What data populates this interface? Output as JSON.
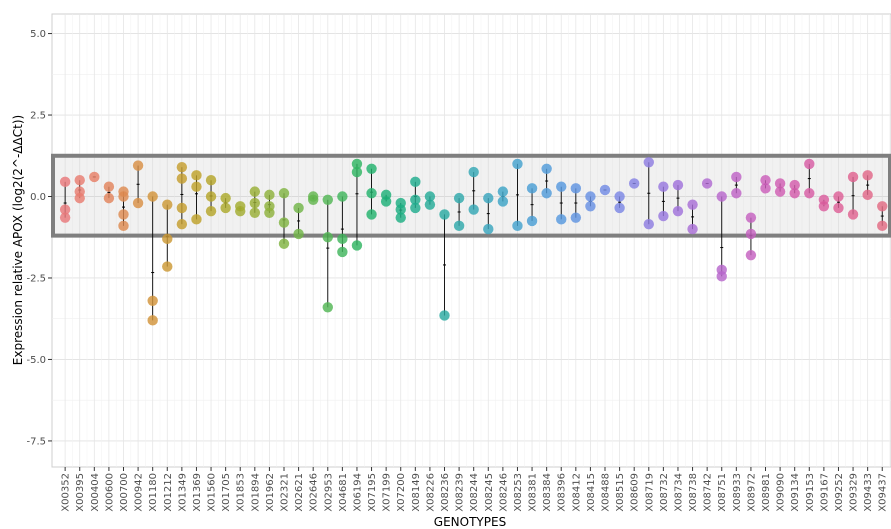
{
  "chart_data": {
    "type": "scatter",
    "xlabel": "GENOTYPES",
    "ylabel": "Expression relative APOX (log2(2^-ΔΔCt))",
    "ylim": [
      -8.3,
      5.6
    ],
    "y_ticks": [
      5.0,
      2.5,
      0.0,
      -2.5,
      -5.0,
      -7.5
    ],
    "y_tick_labels": [
      "5.0",
      "2.5",
      "0.0",
      "-2.5",
      "-5.0",
      "-7.5"
    ],
    "grid": true,
    "legend": "none",
    "reference_band": {
      "y_min": -1.2,
      "y_max": 1.25,
      "color": "#7f7f7f"
    },
    "categories": [
      "X00352",
      "X00395",
      "X00404",
      "X00600",
      "X00700",
      "X00942",
      "X01180",
      "X01212",
      "X01349",
      "X01369",
      "X01560",
      "X01705",
      "X01853",
      "X01894",
      "X01962",
      "X02321",
      "X02621",
      "X02646",
      "X02953",
      "X04681",
      "X06194",
      "X07195",
      "X07199",
      "X07200",
      "X08149",
      "X08226",
      "X08236",
      "X08239",
      "X08244",
      "X08245",
      "X08246",
      "X08253",
      "X08381",
      "X08384",
      "X08396",
      "X08412",
      "X08415",
      "X08488",
      "X08515",
      "X08609",
      "X08719",
      "X08732",
      "X08734",
      "X08738",
      "X08742",
      "X08751",
      "X08933",
      "X08972",
      "X08981",
      "X09090",
      "X09134",
      "X09153",
      "X09167",
      "X09252",
      "X09329",
      "X09433",
      "X09437"
    ],
    "series": [
      {
        "category": "X00352",
        "values": [
          0.45,
          -0.4,
          -0.65
        ],
        "color": "#e8787a"
      },
      {
        "category": "X00395",
        "values": [
          0.5,
          0.15,
          -0.05
        ],
        "color": "#e87c70"
      },
      {
        "category": "X00404",
        "values": [
          0.6
        ],
        "color": "#e67f66"
      },
      {
        "category": "X00600",
        "values": [
          0.3,
          -0.05
        ],
        "color": "#e2845c"
      },
      {
        "category": "X00700",
        "values": [
          0.15,
          -0.55,
          -0.9,
          0.0
        ],
        "color": "#dd8a50"
      },
      {
        "category": "X00942",
        "values": [
          0.95,
          -0.2
        ],
        "color": "#d88f44"
      },
      {
        "category": "X01180",
        "values": [
          0.0,
          -3.2,
          -3.8
        ],
        "color": "#d2943a"
      },
      {
        "category": "X01212",
        "values": [
          -0.25,
          -1.3,
          -2.15
        ],
        "color": "#cc9934"
      },
      {
        "category": "X01349",
        "values": [
          0.9,
          -0.35,
          -0.85,
          0.55
        ],
        "color": "#c59d2e"
      },
      {
        "category": "X01369",
        "values": [
          0.65,
          0.3,
          -0.7
        ],
        "color": "#bea12a"
      },
      {
        "category": "X01560",
        "values": [
          0.5,
          0.0,
          -0.45
        ],
        "color": "#b5a52a"
      },
      {
        "category": "X01705",
        "values": [
          -0.05,
          -0.35
        ],
        "color": "#aca92c"
      },
      {
        "category": "X01853",
        "values": [
          -0.3,
          -0.45
        ],
        "color": "#a2ac30"
      },
      {
        "category": "X01894",
        "values": [
          0.15,
          -0.2,
          -0.5
        ],
        "color": "#98af36"
      },
      {
        "category": "X01962",
        "values": [
          0.05,
          -0.3,
          -0.5
        ],
        "color": "#8db13c"
      },
      {
        "category": "X02321",
        "values": [
          0.1,
          -0.8,
          -1.45
        ],
        "color": "#80b342"
      },
      {
        "category": "X02621",
        "values": [
          -0.35,
          -1.15
        ],
        "color": "#72b548"
      },
      {
        "category": "X02646",
        "values": [
          0.0,
          -0.1
        ],
        "color": "#63b64e"
      },
      {
        "category": "X02953",
        "values": [
          -0.1,
          -1.25,
          -3.4
        ],
        "color": "#52b654"
      },
      {
        "category": "X04681",
        "values": [
          0.0,
          -1.3,
          -1.7
        ],
        "color": "#40b55b"
      },
      {
        "category": "X06194",
        "values": [
          1.0,
          0.75,
          -1.5
        ],
        "color": "#2fb462"
      },
      {
        "category": "X07195",
        "values": [
          0.85,
          0.1,
          -0.55
        ],
        "color": "#22b26c"
      },
      {
        "category": "X07199",
        "values": [
          0.05,
          -0.15
        ],
        "color": "#1db077"
      },
      {
        "category": "X07200",
        "values": [
          -0.2,
          -0.4,
          -0.65
        ],
        "color": "#1dae82"
      },
      {
        "category": "X08149",
        "values": [
          0.45,
          -0.1,
          -0.35
        ],
        "color": "#20ac8d"
      },
      {
        "category": "X08226",
        "values": [
          0.0,
          -0.25
        ],
        "color": "#25ab97"
      },
      {
        "category": "X08236",
        "values": [
          -0.55,
          -3.65
        ],
        "color": "#2aa9a1"
      },
      {
        "category": "X08239",
        "values": [
          -0.05,
          -0.9
        ],
        "color": "#2fa8ab"
      },
      {
        "category": "X08244",
        "values": [
          0.75,
          -0.4
        ],
        "color": "#34a7b4"
      },
      {
        "category": "X08245",
        "values": [
          -0.05,
          -1.0
        ],
        "color": "#39a5bd"
      },
      {
        "category": "X08246",
        "values": [
          0.15,
          -0.15
        ],
        "color": "#3da3c6"
      },
      {
        "category": "X08253",
        "values": [
          1.0,
          -0.9
        ],
        "color": "#43a1cd"
      },
      {
        "category": "X08381",
        "values": [
          0.25,
          -0.75
        ],
        "color": "#499ed4"
      },
      {
        "category": "X08384",
        "values": [
          0.85,
          0.1
        ],
        "color": "#509bd9"
      },
      {
        "category": "X08396",
        "values": [
          0.3,
          -0.7
        ],
        "color": "#5798de"
      },
      {
        "category": "X08412",
        "values": [
          0.25,
          -0.65
        ],
        "color": "#5f94e1"
      },
      {
        "category": "X08415",
        "values": [
          0.0,
          -0.3
        ],
        "color": "#6890e3"
      },
      {
        "category": "X08488",
        "values": [
          0.2
        ],
        "color": "#718be4"
      },
      {
        "category": "X08515",
        "values": [
          0.0,
          -0.35
        ],
        "color": "#7b86e4"
      },
      {
        "category": "X08609",
        "values": [
          0.4
        ],
        "color": "#8581e3"
      },
      {
        "category": "X08719",
        "values": [
          1.05,
          -0.85
        ],
        "color": "#8e7ce1"
      },
      {
        "category": "X08732",
        "values": [
          0.3,
          -0.6
        ],
        "color": "#9777de"
      },
      {
        "category": "X08734",
        "values": [
          0.35,
          -0.45
        ],
        "color": "#a072da"
      },
      {
        "category": "X08738",
        "values": [
          -0.25,
          -1.0
        ],
        "color": "#a86ed6"
      },
      {
        "category": "X08742",
        "values": [
          0.4
        ],
        "color": "#b06ad1"
      },
      {
        "category": "X08751",
        "values": [
          0.0,
          -2.25,
          -2.45
        ],
        "color": "#b766cc"
      },
      {
        "category": "X08933",
        "values": [
          0.6,
          0.1
        ],
        "color": "#be63c6"
      },
      {
        "category": "X08972",
        "values": [
          -0.65,
          -1.15,
          -1.8
        ],
        "color": "#c460c0"
      },
      {
        "category": "X08981",
        "values": [
          0.5,
          0.25
        ],
        "color": "#ca5eb9"
      },
      {
        "category": "X09090",
        "values": [
          0.4,
          0.15
        ],
        "color": "#cf5db2"
      },
      {
        "category": "X09134",
        "values": [
          0.35,
          0.1
        ],
        "color": "#d35cab"
      },
      {
        "category": "X09153",
        "values": [
          1.0,
          0.1
        ],
        "color": "#d75ca4"
      },
      {
        "category": "X09167",
        "values": [
          -0.1,
          -0.3
        ],
        "color": "#da5d9d"
      },
      {
        "category": "X09252",
        "values": [
          0.0,
          -0.35
        ],
        "color": "#dd5f96"
      },
      {
        "category": "X09329",
        "values": [
          0.6,
          -0.55
        ],
        "color": "#df628f"
      },
      {
        "category": "X09433",
        "values": [
          0.65,
          0.05
        ],
        "color": "#e16688"
      },
      {
        "category": "X09437",
        "values": [
          -0.3,
          -0.9
        ],
        "color": "#e26a82"
      }
    ]
  }
}
